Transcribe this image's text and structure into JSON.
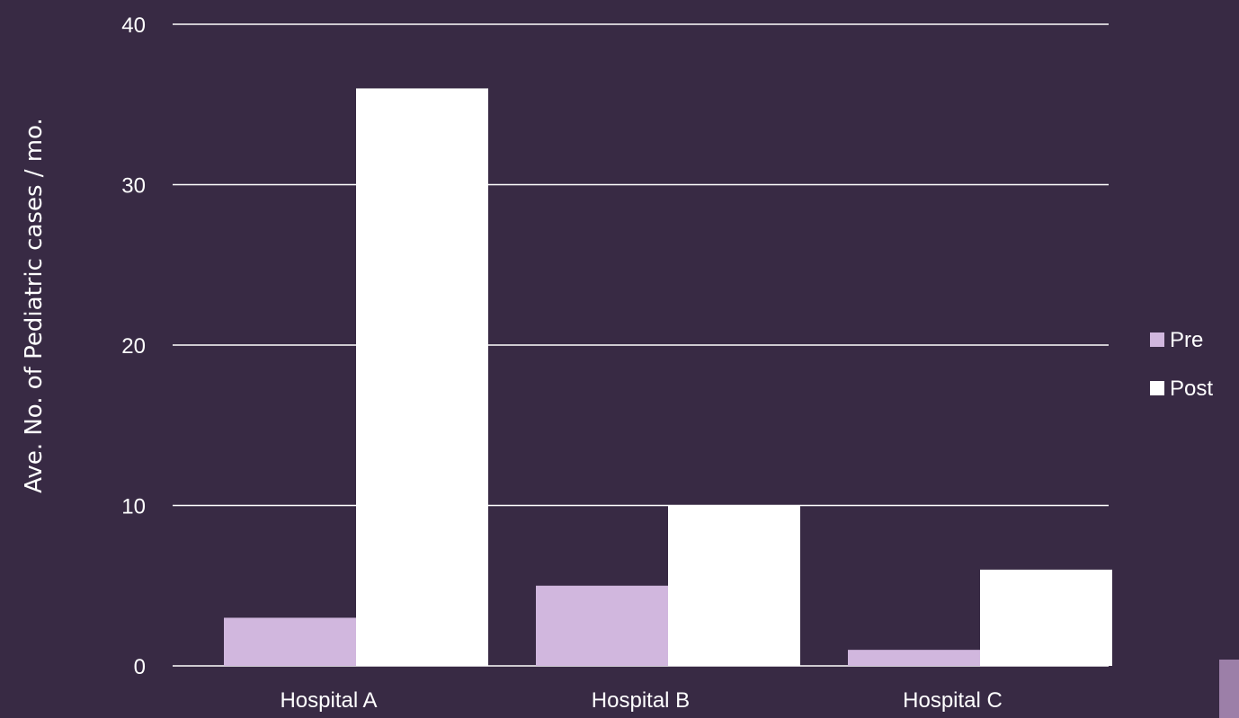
{
  "colors": {
    "background": "#382a44",
    "pre": "#d1b7de",
    "post": "#ffffff",
    "gridline": "#ffffff",
    "text": "#ffffff",
    "corner_accent": "#9c7fa8"
  },
  "chart_data": {
    "type": "bar",
    "title": "",
    "xlabel": "",
    "ylabel": "Ave. No. of Pediatric cases / mo.",
    "categories": [
      "Hospital A",
      "Hospital B",
      "Hospital C"
    ],
    "series": [
      {
        "name": "Pre",
        "values": [
          3,
          5,
          1
        ]
      },
      {
        "name": "Post",
        "values": [
          36,
          10,
          6
        ]
      }
    ],
    "ylim": [
      0,
      40
    ],
    "yticks": [
      0,
      10,
      20,
      30,
      40
    ],
    "grid": true,
    "legend_position": "right"
  }
}
